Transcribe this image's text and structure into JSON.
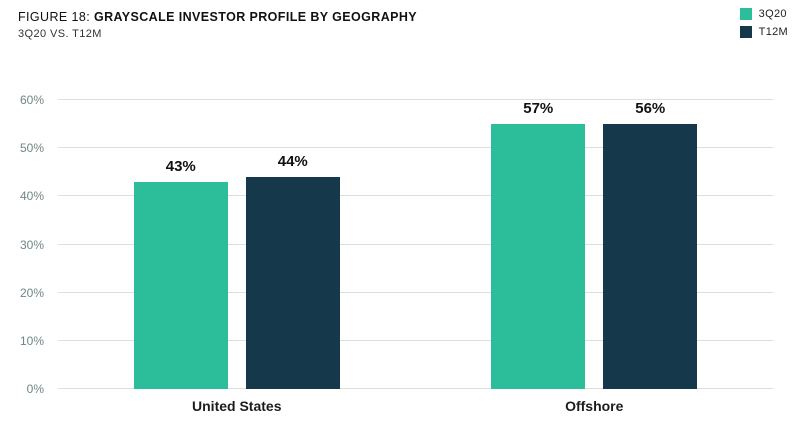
{
  "header": {
    "figure_label": "FIGURE 18:",
    "title": "GRAYSCALE INVESTOR PROFILE BY GEOGRAPHY",
    "subtitle": "3Q20 VS. T12M"
  },
  "chart_data": {
    "type": "bar",
    "categories": [
      "United States",
      "Offshore"
    ],
    "series": [
      {
        "name": "3Q20",
        "color": "#2CBD9B",
        "values": [
          43,
          57
        ]
      },
      {
        "name": "T12M",
        "color": "#16384B",
        "values": [
          44,
          56
        ]
      }
    ],
    "value_labels": [
      [
        "43%",
        "44%"
      ],
      [
        "57%",
        "56%"
      ]
    ],
    "ylim": [
      0,
      60
    ],
    "ytick_step": 10,
    "ytick_suffix": "%",
    "grid": true,
    "legend_position": "top-right"
  }
}
